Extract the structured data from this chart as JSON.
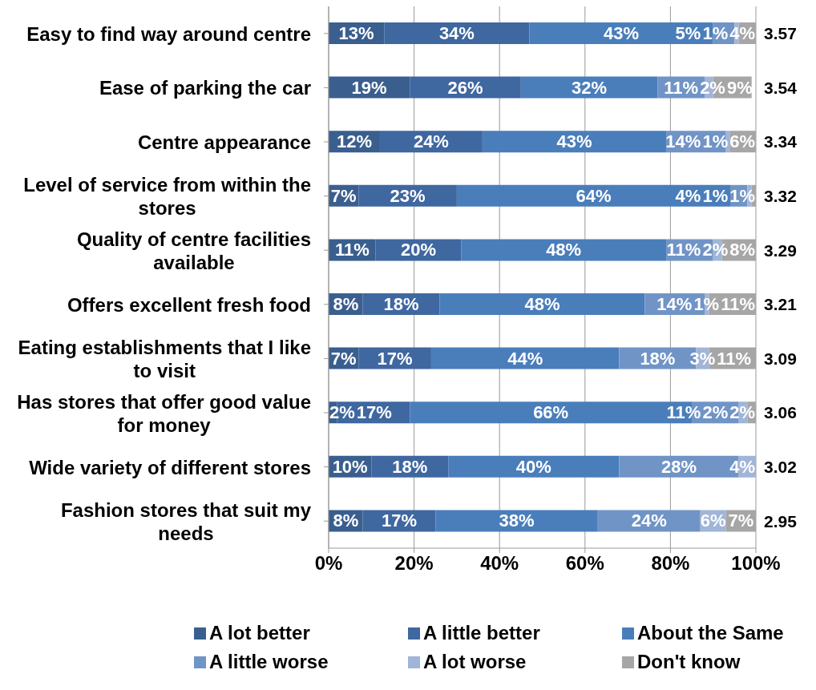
{
  "chart_data": {
    "type": "bar",
    "orientation": "horizontal",
    "stacked": true,
    "categories": [
      "Easy to find way around centre",
      "Ease of parking the car",
      "Centre appearance",
      "Level of service from within the stores",
      "Quality of centre facilities available",
      "Offers excellent fresh food",
      "Eating establishments that I like to visit",
      "Has stores that offer good value for money",
      "Wide variety of different stores",
      "Fashion stores that suit my needs"
    ],
    "series": [
      {
        "name": "A lot better",
        "color": "#3a5f8f",
        "values": [
          13,
          19,
          12,
          7,
          11,
          8,
          7,
          2,
          10,
          8
        ],
        "value_labels": [
          "13%",
          "19%",
          "12%",
          "7%",
          "11%",
          "8%",
          "7%",
          "2%",
          "10%",
          "8%"
        ]
      },
      {
        "name": "A little better",
        "color": "#3f67a0",
        "values": [
          34,
          26,
          24,
          23,
          20,
          18,
          17,
          17,
          18,
          17
        ],
        "value_labels": [
          "34%",
          "26%",
          "24%",
          "23%",
          "20%",
          "18%",
          "17%",
          "17%",
          "18%",
          "17%"
        ]
      },
      {
        "name": "About the Same",
        "color": "#4a7ebb",
        "values": [
          43,
          32,
          43,
          64,
          48,
          48,
          44,
          66,
          40,
          38
        ],
        "value_labels": [
          "43%",
          "32%",
          "43%",
          "64%",
          "48%",
          "48%",
          "44%",
          "66%",
          "40%",
          "38%"
        ]
      },
      {
        "name": "A little worse",
        "color": "#7094c6",
        "values": [
          5,
          11,
          14,
          4,
          11,
          14,
          18,
          11,
          28,
          24
        ],
        "value_labels": [
          "5%",
          "11%",
          "14%",
          "4%",
          "11%",
          "14%",
          "18%",
          "11%",
          "28%",
          "24%"
        ]
      },
      {
        "name": "A lot worse",
        "color": "#a0b5d8",
        "values": [
          1,
          2,
          1,
          1,
          2,
          1,
          3,
          2,
          4,
          6
        ],
        "value_labels": [
          "1%",
          "2%",
          "1%",
          "1%",
          "2%",
          "1%",
          "3%",
          "2%",
          "4%",
          "6%"
        ]
      },
      {
        "name": "Don't know",
        "color": "#a6a6a6",
        "values": [
          4,
          9,
          6,
          1,
          8,
          11,
          11,
          2,
          null,
          7
        ],
        "value_labels": [
          "4%",
          "9%",
          "6%",
          "1%",
          "8%",
          "11%",
          "11%",
          "2%",
          null,
          "7%"
        ]
      }
    ],
    "xlim": [
      0,
      100
    ],
    "xticks": [
      {
        "value": 0,
        "label": "0%"
      },
      {
        "value": 20,
        "label": "20%"
      },
      {
        "value": 40,
        "label": "40%"
      },
      {
        "value": 60,
        "label": "60%"
      },
      {
        "value": 80,
        "label": "80%"
      },
      {
        "value": 100,
        "label": "100%"
      }
    ],
    "annotations": [
      "3.57",
      "3.54",
      "3.34",
      "3.32",
      "3.29",
      "3.21",
      "3.09",
      "3.06",
      "3.02",
      "2.95"
    ],
    "grid": "x",
    "legend": "bottom"
  }
}
